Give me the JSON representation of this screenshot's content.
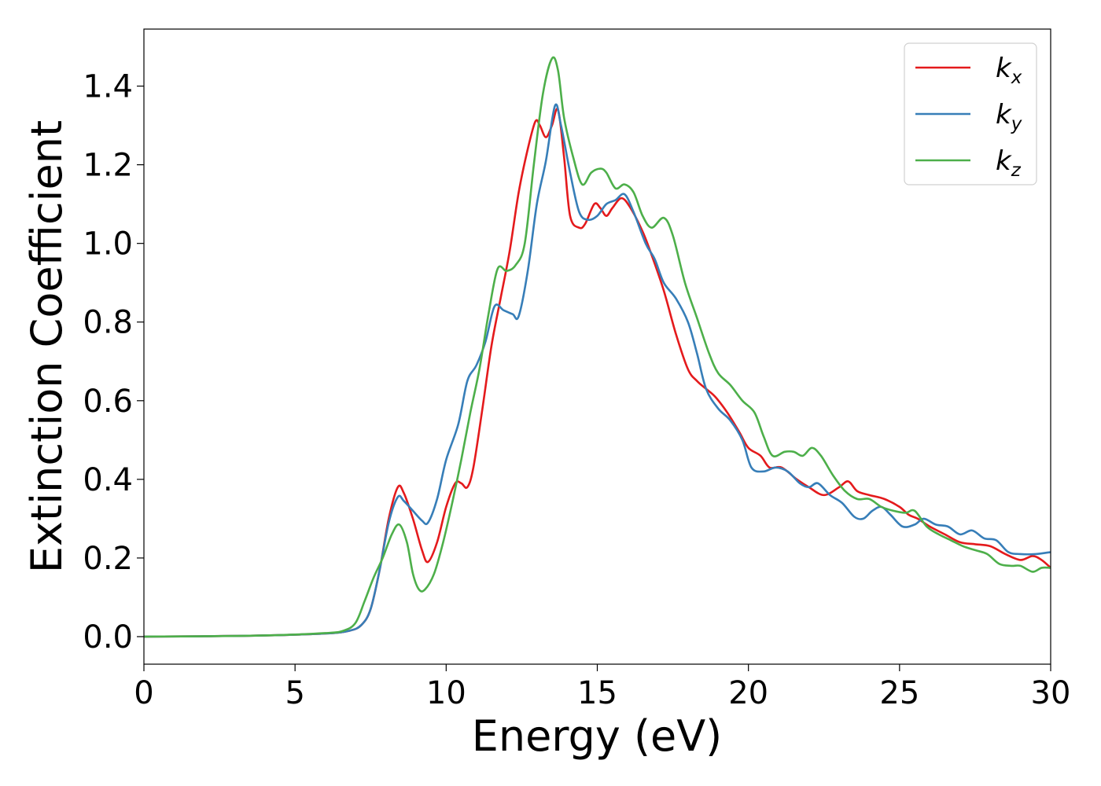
{
  "chart_data": {
    "type": "line",
    "title": "",
    "xlabel": "Energy (eV)",
    "ylabel": "Extinction Coefficient",
    "xlim": [
      0,
      30
    ],
    "ylim": [
      -0.07,
      1.545
    ],
    "xticks": [
      0,
      5,
      10,
      15,
      20,
      25,
      30
    ],
    "yticks": [
      0.0,
      0.2,
      0.4,
      0.6,
      0.8,
      1.0,
      1.2,
      1.4
    ],
    "grid": false,
    "legend_position": "top-right",
    "series": [
      {
        "name": "k_x",
        "label_base": "k",
        "label_sub": "x",
        "color": "#e41a1c",
        "points": [
          [
            0,
            0.0
          ],
          [
            2,
            0.001
          ],
          [
            4,
            0.003
          ],
          [
            6,
            0.008
          ],
          [
            6.8,
            0.015
          ],
          [
            7.2,
            0.03
          ],
          [
            7.5,
            0.07
          ],
          [
            7.8,
            0.17
          ],
          [
            8.1,
            0.3
          ],
          [
            8.4,
            0.38
          ],
          [
            8.6,
            0.365
          ],
          [
            8.9,
            0.3
          ],
          [
            9.2,
            0.22
          ],
          [
            9.4,
            0.19
          ],
          [
            9.7,
            0.24
          ],
          [
            10.0,
            0.33
          ],
          [
            10.3,
            0.39
          ],
          [
            10.5,
            0.39
          ],
          [
            10.7,
            0.38
          ],
          [
            10.9,
            0.43
          ],
          [
            11.2,
            0.58
          ],
          [
            11.5,
            0.74
          ],
          [
            11.8,
            0.86
          ],
          [
            12.1,
            0.98
          ],
          [
            12.4,
            1.13
          ],
          [
            12.7,
            1.24
          ],
          [
            12.95,
            1.31
          ],
          [
            13.1,
            1.3
          ],
          [
            13.3,
            1.27
          ],
          [
            13.5,
            1.3
          ],
          [
            13.7,
            1.34
          ],
          [
            13.9,
            1.22
          ],
          [
            14.1,
            1.07
          ],
          [
            14.4,
            1.04
          ],
          [
            14.6,
            1.05
          ],
          [
            14.9,
            1.1
          ],
          [
            15.1,
            1.09
          ],
          [
            15.3,
            1.07
          ],
          [
            15.5,
            1.09
          ],
          [
            15.8,
            1.115
          ],
          [
            16.1,
            1.09
          ],
          [
            16.5,
            1.03
          ],
          [
            16.8,
            0.97
          ],
          [
            17.2,
            0.88
          ],
          [
            17.6,
            0.77
          ],
          [
            18.0,
            0.68
          ],
          [
            18.3,
            0.65
          ],
          [
            18.6,
            0.63
          ],
          [
            18.9,
            0.61
          ],
          [
            19.3,
            0.57
          ],
          [
            19.7,
            0.52
          ],
          [
            20.0,
            0.48
          ],
          [
            20.4,
            0.46
          ],
          [
            20.7,
            0.43
          ],
          [
            21.1,
            0.43
          ],
          [
            21.6,
            0.4
          ],
          [
            22.0,
            0.38
          ],
          [
            22.5,
            0.36
          ],
          [
            23.0,
            0.38
          ],
          [
            23.3,
            0.395
          ],
          [
            23.6,
            0.37
          ],
          [
            24.0,
            0.36
          ],
          [
            24.5,
            0.35
          ],
          [
            25.0,
            0.33
          ],
          [
            25.3,
            0.31
          ],
          [
            25.6,
            0.3
          ],
          [
            26.0,
            0.28
          ],
          [
            26.5,
            0.26
          ],
          [
            27.0,
            0.24
          ],
          [
            27.5,
            0.235
          ],
          [
            28.0,
            0.23
          ],
          [
            28.5,
            0.21
          ],
          [
            29.0,
            0.195
          ],
          [
            29.4,
            0.205
          ],
          [
            29.7,
            0.195
          ],
          [
            30.0,
            0.175
          ]
        ]
      },
      {
        "name": "k_y",
        "label_base": "k",
        "label_sub": "y",
        "color": "#377eb8",
        "points": [
          [
            0,
            0.0
          ],
          [
            2,
            0.001
          ],
          [
            4,
            0.003
          ],
          [
            6,
            0.008
          ],
          [
            6.8,
            0.015
          ],
          [
            7.2,
            0.03
          ],
          [
            7.5,
            0.07
          ],
          [
            7.8,
            0.17
          ],
          [
            8.1,
            0.29
          ],
          [
            8.4,
            0.355
          ],
          [
            8.6,
            0.345
          ],
          [
            8.9,
            0.32
          ],
          [
            9.2,
            0.295
          ],
          [
            9.4,
            0.29
          ],
          [
            9.7,
            0.35
          ],
          [
            10.0,
            0.45
          ],
          [
            10.4,
            0.54
          ],
          [
            10.7,
            0.65
          ],
          [
            11.0,
            0.69
          ],
          [
            11.3,
            0.75
          ],
          [
            11.6,
            0.84
          ],
          [
            11.9,
            0.83
          ],
          [
            12.2,
            0.82
          ],
          [
            12.4,
            0.815
          ],
          [
            12.7,
            0.93
          ],
          [
            13.0,
            1.1
          ],
          [
            13.3,
            1.21
          ],
          [
            13.6,
            1.35
          ],
          [
            13.8,
            1.3
          ],
          [
            14.1,
            1.18
          ],
          [
            14.4,
            1.08
          ],
          [
            14.7,
            1.06
          ],
          [
            15.0,
            1.07
          ],
          [
            15.3,
            1.1
          ],
          [
            15.6,
            1.11
          ],
          [
            15.9,
            1.125
          ],
          [
            16.2,
            1.08
          ],
          [
            16.6,
            1.0
          ],
          [
            16.9,
            0.96
          ],
          [
            17.2,
            0.9
          ],
          [
            17.6,
            0.86
          ],
          [
            18.0,
            0.8
          ],
          [
            18.3,
            0.72
          ],
          [
            18.6,
            0.63
          ],
          [
            19.0,
            0.58
          ],
          [
            19.4,
            0.55
          ],
          [
            19.8,
            0.5
          ],
          [
            20.1,
            0.43
          ],
          [
            20.5,
            0.42
          ],
          [
            20.9,
            0.43
          ],
          [
            21.3,
            0.42
          ],
          [
            21.7,
            0.39
          ],
          [
            22.0,
            0.38
          ],
          [
            22.3,
            0.39
          ],
          [
            22.7,
            0.36
          ],
          [
            23.1,
            0.34
          ],
          [
            23.5,
            0.305
          ],
          [
            23.8,
            0.3
          ],
          [
            24.1,
            0.32
          ],
          [
            24.4,
            0.33
          ],
          [
            24.7,
            0.31
          ],
          [
            25.1,
            0.28
          ],
          [
            25.5,
            0.285
          ],
          [
            25.8,
            0.3
          ],
          [
            26.2,
            0.285
          ],
          [
            26.6,
            0.28
          ],
          [
            27.0,
            0.26
          ],
          [
            27.4,
            0.27
          ],
          [
            27.8,
            0.25
          ],
          [
            28.2,
            0.245
          ],
          [
            28.6,
            0.215
          ],
          [
            29.0,
            0.21
          ],
          [
            29.5,
            0.21
          ],
          [
            30.0,
            0.215
          ]
        ]
      },
      {
        "name": "k_z",
        "label_base": "k",
        "label_sub": "z",
        "color": "#4daf4a",
        "points": [
          [
            0,
            0.0
          ],
          [
            2,
            0.001
          ],
          [
            4,
            0.003
          ],
          [
            6,
            0.009
          ],
          [
            6.6,
            0.015
          ],
          [
            7.0,
            0.035
          ],
          [
            7.3,
            0.09
          ],
          [
            7.6,
            0.15
          ],
          [
            7.9,
            0.2
          ],
          [
            8.2,
            0.26
          ],
          [
            8.45,
            0.285
          ],
          [
            8.7,
            0.24
          ],
          [
            8.9,
            0.16
          ],
          [
            9.1,
            0.12
          ],
          [
            9.3,
            0.12
          ],
          [
            9.6,
            0.16
          ],
          [
            9.9,
            0.24
          ],
          [
            10.2,
            0.34
          ],
          [
            10.5,
            0.45
          ],
          [
            10.8,
            0.57
          ],
          [
            11.1,
            0.68
          ],
          [
            11.4,
            0.82
          ],
          [
            11.7,
            0.935
          ],
          [
            12.0,
            0.93
          ],
          [
            12.3,
            0.945
          ],
          [
            12.6,
            1.0
          ],
          [
            12.9,
            1.2
          ],
          [
            13.2,
            1.38
          ],
          [
            13.5,
            1.47
          ],
          [
            13.7,
            1.44
          ],
          [
            13.9,
            1.32
          ],
          [
            14.2,
            1.22
          ],
          [
            14.5,
            1.15
          ],
          [
            14.8,
            1.18
          ],
          [
            15.1,
            1.19
          ],
          [
            15.3,
            1.18
          ],
          [
            15.6,
            1.14
          ],
          [
            15.9,
            1.15
          ],
          [
            16.2,
            1.13
          ],
          [
            16.5,
            1.07
          ],
          [
            16.8,
            1.04
          ],
          [
            17.2,
            1.065
          ],
          [
            17.5,
            1.02
          ],
          [
            17.9,
            0.9
          ],
          [
            18.3,
            0.81
          ],
          [
            18.7,
            0.72
          ],
          [
            19.0,
            0.67
          ],
          [
            19.4,
            0.64
          ],
          [
            19.8,
            0.6
          ],
          [
            20.2,
            0.57
          ],
          [
            20.5,
            0.51
          ],
          [
            20.8,
            0.46
          ],
          [
            21.2,
            0.47
          ],
          [
            21.5,
            0.47
          ],
          [
            21.8,
            0.46
          ],
          [
            22.1,
            0.48
          ],
          [
            22.4,
            0.46
          ],
          [
            22.8,
            0.41
          ],
          [
            23.2,
            0.37
          ],
          [
            23.6,
            0.35
          ],
          [
            24.0,
            0.35
          ],
          [
            24.4,
            0.33
          ],
          [
            24.8,
            0.32
          ],
          [
            25.2,
            0.315
          ],
          [
            25.5,
            0.32
          ],
          [
            25.9,
            0.28
          ],
          [
            26.3,
            0.26
          ],
          [
            26.7,
            0.245
          ],
          [
            27.1,
            0.23
          ],
          [
            27.5,
            0.22
          ],
          [
            27.9,
            0.21
          ],
          [
            28.3,
            0.185
          ],
          [
            28.7,
            0.18
          ],
          [
            29.0,
            0.18
          ],
          [
            29.4,
            0.165
          ],
          [
            29.7,
            0.175
          ],
          [
            30.0,
            0.175
          ]
        ]
      }
    ]
  }
}
